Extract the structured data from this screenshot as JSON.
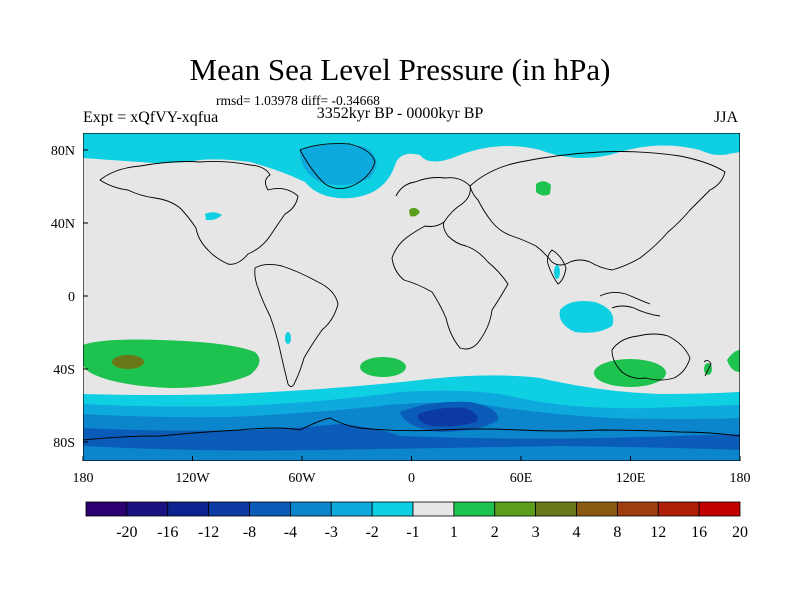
{
  "title": "Mean Sea Level Pressure (in hPa)",
  "stats": "rmsd= 1.03978 diff= -0.34668",
  "experiment": "Expt = xQfVY-xqfua",
  "period": "3352kyr BP - 0000kyr BP",
  "season": "JJA",
  "axes": {
    "x_ticks": [
      "180",
      "120W",
      "60W",
      "0",
      "60E",
      "120E",
      "180"
    ],
    "y_ticks": [
      "80N",
      "40N",
      "0",
      "40S",
      "80S"
    ]
  },
  "colorbar": {
    "colors": [
      "#2c0070",
      "#1c1180",
      "#0c2390",
      "#0b3aa2",
      "#0a5cb8",
      "#0b86cc",
      "#0ea9dd",
      "#0fd0e2",
      "#e6e6e6",
      "#1ec24f",
      "#5a9e1c",
      "#6a781a",
      "#8a5a12",
      "#9e3d0d",
      "#ae1e08",
      "#c20000"
    ],
    "labels": [
      "-20",
      "-16",
      "-12",
      "-8",
      "-4",
      "-3",
      "-2",
      "-1",
      "1",
      "2",
      "3",
      "4",
      "8",
      "12",
      "16",
      "20"
    ]
  },
  "map": {
    "ocean_color": "#e6e6e6",
    "features": [
      {
        "name": "arctic-negative-anomaly",
        "level": "-2 to -1",
        "color": "#0fd0e2"
      },
      {
        "name": "greenland-negative-anomaly",
        "level": "-3 to -2",
        "color": "#0ea9dd"
      },
      {
        "name": "south-pacific-positive-anomaly",
        "level": "1 to 2",
        "color": "#1ec24f"
      },
      {
        "name": "south-pacific-core",
        "level": "3 to 4",
        "color": "#6a781a"
      },
      {
        "name": "south-atlantic-positive-anomaly",
        "level": "1 to 2",
        "color": "#1ec24f"
      },
      {
        "name": "australia-positive-anomaly",
        "level": "1 to 2",
        "color": "#1ec24f"
      },
      {
        "name": "central-asia-positive-anomaly",
        "level": "1 to 2",
        "color": "#1ec24f"
      },
      {
        "name": "indian-ocean-negative-anomaly",
        "level": "-2 to -1",
        "color": "#0fd0e2"
      },
      {
        "name": "southern-ocean-negative-band",
        "level": "-12 to -1",
        "color": "#0a5cb8"
      }
    ]
  }
}
